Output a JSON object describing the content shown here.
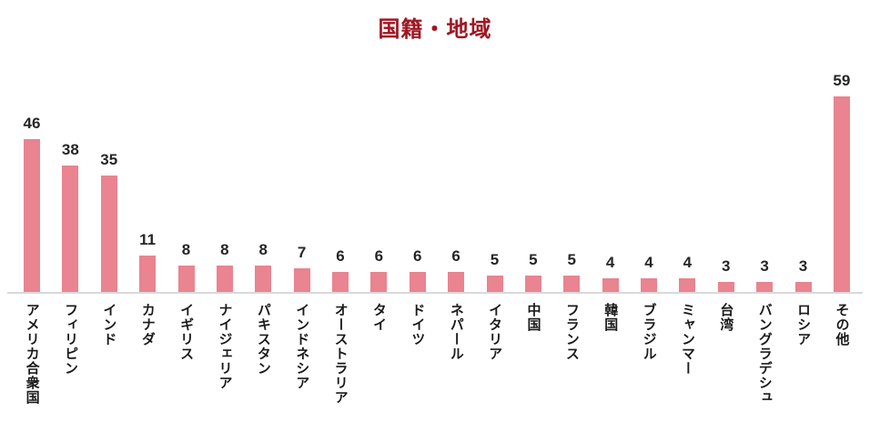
{
  "chart_data": {
    "type": "bar",
    "title": "国籍・地域",
    "categories": [
      "アメリカ合衆国",
      "フィリピン",
      "インド",
      "カナダ",
      "イギリス",
      "ナイジェリア",
      "パキスタン",
      "インドネシア",
      "オーストラリア",
      "タイ",
      "ドイツ",
      "ネパール",
      "イタリア",
      "中国",
      "フランス",
      "韓国",
      "ブラジル",
      "ミャンマー",
      "台湾",
      "バングラデシュ",
      "ロシア",
      "その他"
    ],
    "values": [
      46,
      38,
      35,
      11,
      8,
      8,
      8,
      7,
      6,
      6,
      6,
      6,
      5,
      5,
      5,
      4,
      4,
      4,
      3,
      3,
      3,
      59
    ],
    "xlabel": "",
    "ylabel": "",
    "ylim": [
      0,
      60
    ],
    "grid": "off",
    "legend": "none",
    "data_labels": "on",
    "orientation": "vertical",
    "colors": {
      "bar": "#E98490",
      "title": "#A01622",
      "axis_line": "#D9D9D9",
      "value_label": "#262626",
      "category_label": "#1A1A1A"
    }
  }
}
